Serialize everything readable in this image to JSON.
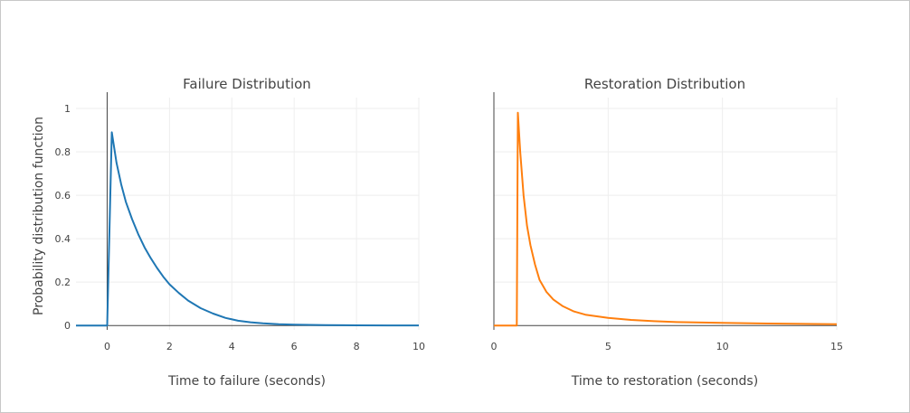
{
  "chart_data": [
    {
      "type": "line",
      "title": "Failure Distribution",
      "xlabel": "Time to failure (seconds)",
      "ylabel": "Probability distribution function",
      "xlim": [
        -1,
        10
      ],
      "ylim": [
        -0.02,
        1.05
      ],
      "x_ticks": [
        "0",
        "2",
        "4",
        "6",
        "8",
        "10"
      ],
      "x_tick_values": [
        0,
        2,
        4,
        6,
        8,
        10
      ],
      "y_ticks": [
        "0",
        "0.2",
        "0.4",
        "0.6",
        "0.8",
        "1"
      ],
      "y_tick_values": [
        0,
        0.2,
        0.4,
        0.6,
        0.8,
        1
      ],
      "grid": true,
      "color": "#1f77b4",
      "series": [
        {
          "x": [
            -1,
            0,
            0.15,
            0.3,
            0.45,
            0.6,
            0.8,
            1.0,
            1.2,
            1.4,
            1.6,
            1.8,
            2.0,
            2.3,
            2.6,
            3.0,
            3.4,
            3.8,
            4.2,
            4.6,
            5.0,
            5.5,
            6.0,
            6.5,
            7.0,
            8.0,
            9.0,
            10.0
          ],
          "y": [
            0,
            0,
            0.89,
            0.75,
            0.65,
            0.57,
            0.49,
            0.42,
            0.36,
            0.31,
            0.265,
            0.225,
            0.19,
            0.15,
            0.115,
            0.08,
            0.055,
            0.035,
            0.022,
            0.015,
            0.01,
            0.006,
            0.004,
            0.003,
            0.002,
            0.001,
            0.0005,
            0.0003
          ]
        }
      ]
    },
    {
      "type": "line",
      "title": "Restoration Distribution",
      "xlabel": "Time to restoration (seconds)",
      "ylabel": "",
      "xlim": [
        0,
        15
      ],
      "ylim": [
        -0.02,
        1.05
      ],
      "x_ticks": [
        "0",
        "5",
        "10",
        "15"
      ],
      "x_tick_values": [
        0,
        5,
        10,
        15
      ],
      "y_tick_values": [
        0,
        0.2,
        0.4,
        0.6,
        0.8,
        1
      ],
      "grid": true,
      "color": "#ff7f0e",
      "series": [
        {
          "x": [
            0,
            1.0,
            1.0,
            1.05,
            1.15,
            1.3,
            1.45,
            1.6,
            1.8,
            2.0,
            2.3,
            2.6,
            3.0,
            3.5,
            4.0,
            5.0,
            6.0,
            7.0,
            8.0,
            10.0,
            12.0,
            15.0
          ],
          "y": [
            0,
            0,
            0,
            0.98,
            0.8,
            0.6,
            0.46,
            0.37,
            0.28,
            0.21,
            0.155,
            0.12,
            0.09,
            0.065,
            0.05,
            0.035,
            0.026,
            0.02,
            0.016,
            0.012,
            0.009,
            0.006
          ]
        }
      ]
    }
  ]
}
